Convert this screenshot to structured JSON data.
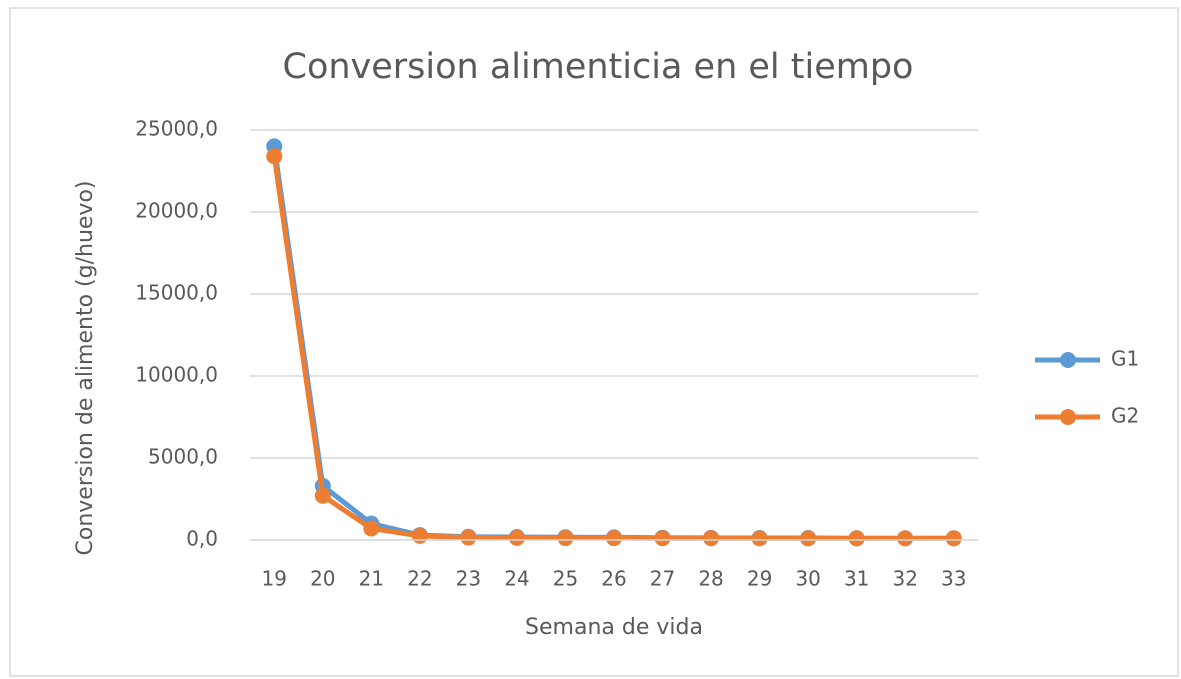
{
  "chart_data": {
    "type": "line",
    "title": "Conversion alimenticia en el tiempo",
    "x_label": "Semana de vida",
    "y_label": "Conversion de alimento (g/huevo)",
    "categories": [
      "19",
      "20",
      "21",
      "22",
      "23",
      "24",
      "25",
      "26",
      "27",
      "28",
      "29",
      "30",
      "31",
      "32",
      "33"
    ],
    "series": [
      {
        "name": "G1",
        "color": "#5b9bd5",
        "values": [
          24000,
          3300,
          1000,
          300,
          200,
          180,
          170,
          160,
          140,
          130,
          120,
          120,
          110,
          110,
          110
        ]
      },
      {
        "name": "G2",
        "color": "#ed7d31",
        "values": [
          23400,
          2700,
          700,
          250,
          150,
          130,
          120,
          115,
          110,
          105,
          100,
          100,
          100,
          100,
          100
        ]
      }
    ],
    "ylim": [
      0,
      25000
    ],
    "yticks": [
      {
        "value": 0,
        "label": "0,0"
      },
      {
        "value": 5000,
        "label": "5000,0"
      },
      {
        "value": 10000,
        "label": "10000,0"
      },
      {
        "value": 15000,
        "label": "15000,0"
      },
      {
        "value": 20000,
        "label": "20000,0"
      },
      {
        "value": 25000,
        "label": "25000,0"
      }
    ],
    "grid": true,
    "legend": "right"
  }
}
